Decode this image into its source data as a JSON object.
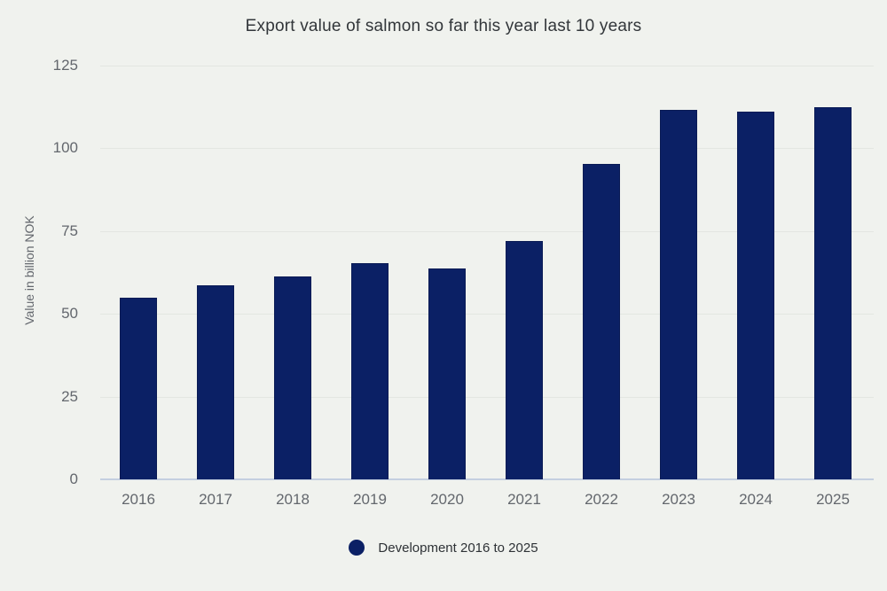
{
  "page": {
    "background": "#f0f2ee"
  },
  "chart_data": {
    "type": "bar",
    "title": "Export value of salmon so far this year last 10 years",
    "ylabel": "Value in billion NOK",
    "xlabel": "",
    "categories": [
      "2016",
      "2017",
      "2018",
      "2019",
      "2020",
      "2021",
      "2022",
      "2023",
      "2024",
      "2025"
    ],
    "series": [
      {
        "name": "Development 2016 to 2025",
        "values": [
          55,
          58.6,
          61.4,
          65.2,
          63.6,
          72.1,
          95.4,
          111.6,
          111.2,
          112.4
        ]
      }
    ],
    "ylim": [
      0,
      125
    ],
    "yticks": [
      0,
      25,
      50,
      75,
      100,
      125
    ],
    "grid": "horizontal",
    "legend_position": "bottom-center",
    "colors": {
      "bar_fill": "#0b2065",
      "bar_border": "#0a1b55",
      "gridline": "#e3e6e1",
      "zero_line": "#c4cfe0",
      "title_text": "#32363a",
      "tick_text": "#63676d",
      "legend_text": "#2e3236"
    }
  }
}
